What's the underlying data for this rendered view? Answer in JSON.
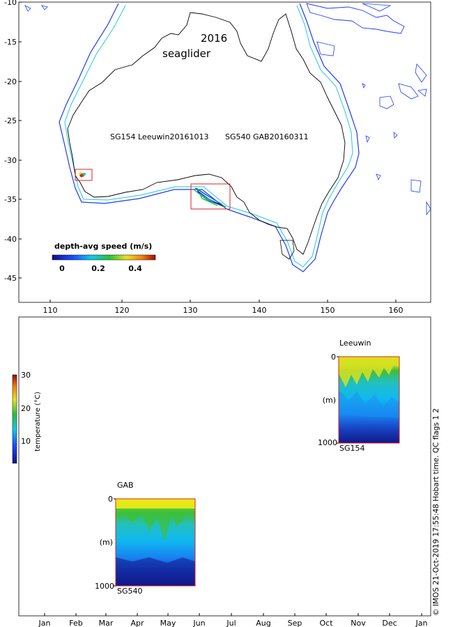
{
  "map": {
    "title_year": "2016",
    "title_label": "seaglider",
    "lat_ticks": [
      "-10",
      "-15",
      "-20",
      "-25",
      "-30",
      "-35",
      "-40",
      "-45"
    ],
    "lon_ticks": [
      "110",
      "120",
      "130",
      "140",
      "150",
      "160"
    ],
    "mission_label_sg154": "SG154 Leeuwin20161013",
    "mission_label_sg540": "SG540 GAB20160311",
    "colorbar": {
      "title": "depth-avg speed (m/s)",
      "ticks": [
        "0",
        "0.2",
        "0.4"
      ]
    }
  },
  "timeline": {
    "months": [
      "Jan",
      "Feb",
      "Mar",
      "Apr",
      "May",
      "Jun",
      "Jul",
      "Aug",
      "Sep",
      "Oct",
      "Nov",
      "Dec",
      "Jan"
    ],
    "temp_colorbar": {
      "label": "temperature (°C)",
      "ticks": [
        "30",
        "20",
        "10"
      ]
    },
    "panels": [
      {
        "region": "Leeuwin",
        "glider": "SG154",
        "depth_top": "0",
        "depth_unit": "(m)",
        "depth_bottom": "1000"
      },
      {
        "region": "GAB",
        "glider": "SG540",
        "depth_top": "0",
        "depth_unit": "(m)",
        "depth_bottom": "1000"
      }
    ]
  },
  "footer": {
    "credit": "© IMOS 21-Oct-2019 17:55:48 Hobart time. QC flags 1  2"
  },
  "colors": {
    "coast": "#000000",
    "isobath_200m": "#22c8d8",
    "isobath_deep": "#1a3cff",
    "box": "#e02020"
  }
}
